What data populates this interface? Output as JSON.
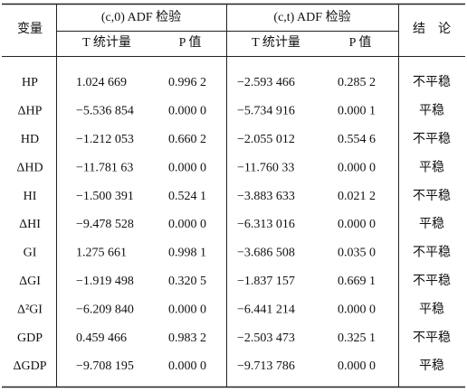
{
  "table": {
    "header": [
      "变量",
      "(c,0) ADF 检验",
      "(c,t) ADF 检验",
      "结　论"
    ],
    "subheader": [
      "T 统计量",
      "P 值",
      "T 统计量",
      "P 值"
    ],
    "rows": [
      [
        "HP",
        "1.024 669",
        "0.996 2",
        "−2.593 466",
        "0.285 2",
        "不平稳"
      ],
      [
        "ΔHP",
        "−5.536 854",
        "0.000 0",
        "−5.734 916",
        "0.000 1",
        "平稳"
      ],
      [
        "HD",
        "−1.212 053",
        "0.660 2",
        "−2.055 012",
        "0.554 6",
        "不平稳"
      ],
      [
        "ΔHD",
        "−11.781 63",
        "0.000 0",
        "−11.760 33",
        "0.000 0",
        "平稳"
      ],
      [
        "HI",
        "−1.500 391",
        "0.524 1",
        "−3.883 633",
        "0.021 2",
        "不平稳"
      ],
      [
        "ΔHI",
        "−9.478 528",
        "0.000 0",
        "−6.313 016",
        "0.000 0",
        "平稳"
      ],
      [
        "GI",
        "1.275 661",
        "0.998 1",
        "−3.686 508",
        "0.035 0",
        "不平稳"
      ],
      [
        "ΔGI",
        "−1.919 498",
        "0.320 5",
        "−1.837 157",
        "0.669 1",
        "不平稳"
      ],
      [
        "Δ²GI",
        "−6.209 840",
        "0.000 0",
        "−6.441 214",
        "0.000 0",
        "平稳"
      ],
      [
        "GDP",
        "0.459 466",
        "0.983 2",
        "−2.503 473",
        "0.325 1",
        "不平稳"
      ],
      [
        "ΔGDP",
        "−9.708 195",
        "0.000 0",
        "−9.713 786",
        "0.000 0",
        "平稳"
      ]
    ]
  }
}
